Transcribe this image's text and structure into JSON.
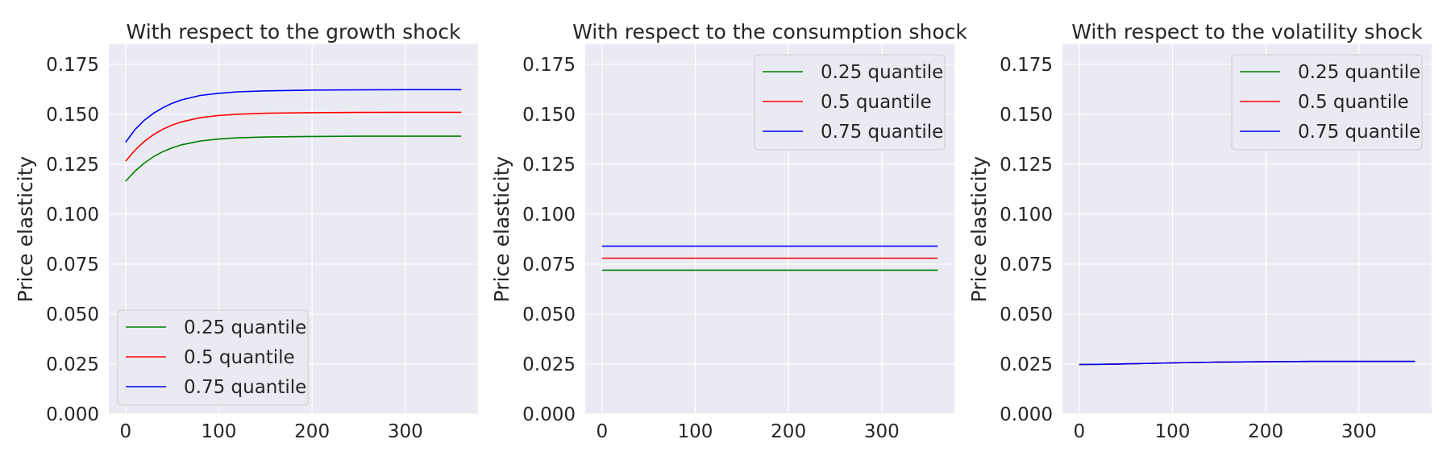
{
  "chart_data": [
    {
      "type": "line",
      "title": "With respect to the growth shock",
      "xlabel": "",
      "ylabel": "Price elasticity",
      "xlim": [
        -18,
        378
      ],
      "ylim": [
        0,
        0.185
      ],
      "xticks": [
        0,
        100,
        200,
        300
      ],
      "yticks": [
        0.0,
        0.025,
        0.05,
        0.075,
        0.1,
        0.125,
        0.15,
        0.175
      ],
      "ytick_labels": [
        "0.000",
        "0.025",
        "0.050",
        "0.075",
        "0.100",
        "0.125",
        "0.150",
        "0.175"
      ],
      "grid": true,
      "legend_position": "lower-left",
      "x": [
        0,
        10,
        20,
        30,
        40,
        50,
        60,
        80,
        100,
        120,
        150,
        200,
        250,
        300,
        360
      ],
      "series": [
        {
          "name": "0.25 quantile",
          "color": "#008000",
          "values": [
            0.1165,
            0.1215,
            0.1255,
            0.1288,
            0.1313,
            0.1332,
            0.1347,
            0.1366,
            0.1376,
            0.1382,
            0.1386,
            0.1389,
            0.139,
            0.139,
            0.139
          ]
        },
        {
          "name": "0.5 quantile",
          "color": "#ff0000",
          "values": [
            0.1265,
            0.132,
            0.1364,
            0.1398,
            0.1425,
            0.1446,
            0.1462,
            0.1483,
            0.1494,
            0.15,
            0.1505,
            0.1508,
            0.1509,
            0.151,
            0.151
          ]
        },
        {
          "name": "0.75 quantile",
          "color": "#0000ff",
          "values": [
            0.136,
            0.1423,
            0.147,
            0.1505,
            0.1533,
            0.1555,
            0.1572,
            0.1594,
            0.1605,
            0.1612,
            0.1617,
            0.1621,
            0.1622,
            0.1623,
            0.1623
          ]
        }
      ]
    },
    {
      "type": "line",
      "title": "With respect to the consumption shock",
      "xlabel": "",
      "ylabel": "Price elasticity",
      "xlim": [
        -18,
        378
      ],
      "ylim": [
        0,
        0.185
      ],
      "xticks": [
        0,
        100,
        200,
        300
      ],
      "yticks": [
        0.0,
        0.025,
        0.05,
        0.075,
        0.1,
        0.125,
        0.15,
        0.175
      ],
      "ytick_labels": [
        "0.000",
        "0.025",
        "0.050",
        "0.075",
        "0.100",
        "0.125",
        "0.150",
        "0.175"
      ],
      "grid": true,
      "legend_position": "upper-right",
      "x": [
        0,
        360
      ],
      "series": [
        {
          "name": "0.25 quantile",
          "color": "#008000",
          "values": [
            0.072,
            0.072
          ]
        },
        {
          "name": "0.5 quantile",
          "color": "#ff0000",
          "values": [
            0.078,
            0.078
          ]
        },
        {
          "name": "0.75 quantile",
          "color": "#0000ff",
          "values": [
            0.084,
            0.084
          ]
        }
      ]
    },
    {
      "type": "line",
      "title": "With respect to the volatility shock",
      "xlabel": "",
      "ylabel": "Price elasticity",
      "xlim": [
        -18,
        378
      ],
      "ylim": [
        0,
        0.185
      ],
      "xticks": [
        0,
        100,
        200,
        300
      ],
      "yticks": [
        0.0,
        0.025,
        0.05,
        0.075,
        0.1,
        0.125,
        0.15,
        0.175
      ],
      "ytick_labels": [
        "0.000",
        "0.025",
        "0.050",
        "0.075",
        "0.100",
        "0.125",
        "0.150",
        "0.175"
      ],
      "grid": true,
      "legend_position": "upper-right",
      "x": [
        0,
        30,
        60,
        100,
        150,
        200,
        250,
        300,
        360
      ],
      "series": [
        {
          "name": "0.25 quantile",
          "color": "#008000",
          "values": [
            0.0248,
            0.0249,
            0.0252,
            0.0256,
            0.026,
            0.0262,
            0.0263,
            0.0263,
            0.0263
          ]
        },
        {
          "name": "0.5 quantile",
          "color": "#ff0000",
          "values": [
            0.0248,
            0.0249,
            0.0252,
            0.0256,
            0.026,
            0.0262,
            0.0263,
            0.0263,
            0.0263
          ]
        },
        {
          "name": "0.75 quantile",
          "color": "#0000ff",
          "values": [
            0.0248,
            0.0249,
            0.0252,
            0.0256,
            0.026,
            0.0262,
            0.0263,
            0.0263,
            0.0263
          ]
        }
      ]
    }
  ]
}
